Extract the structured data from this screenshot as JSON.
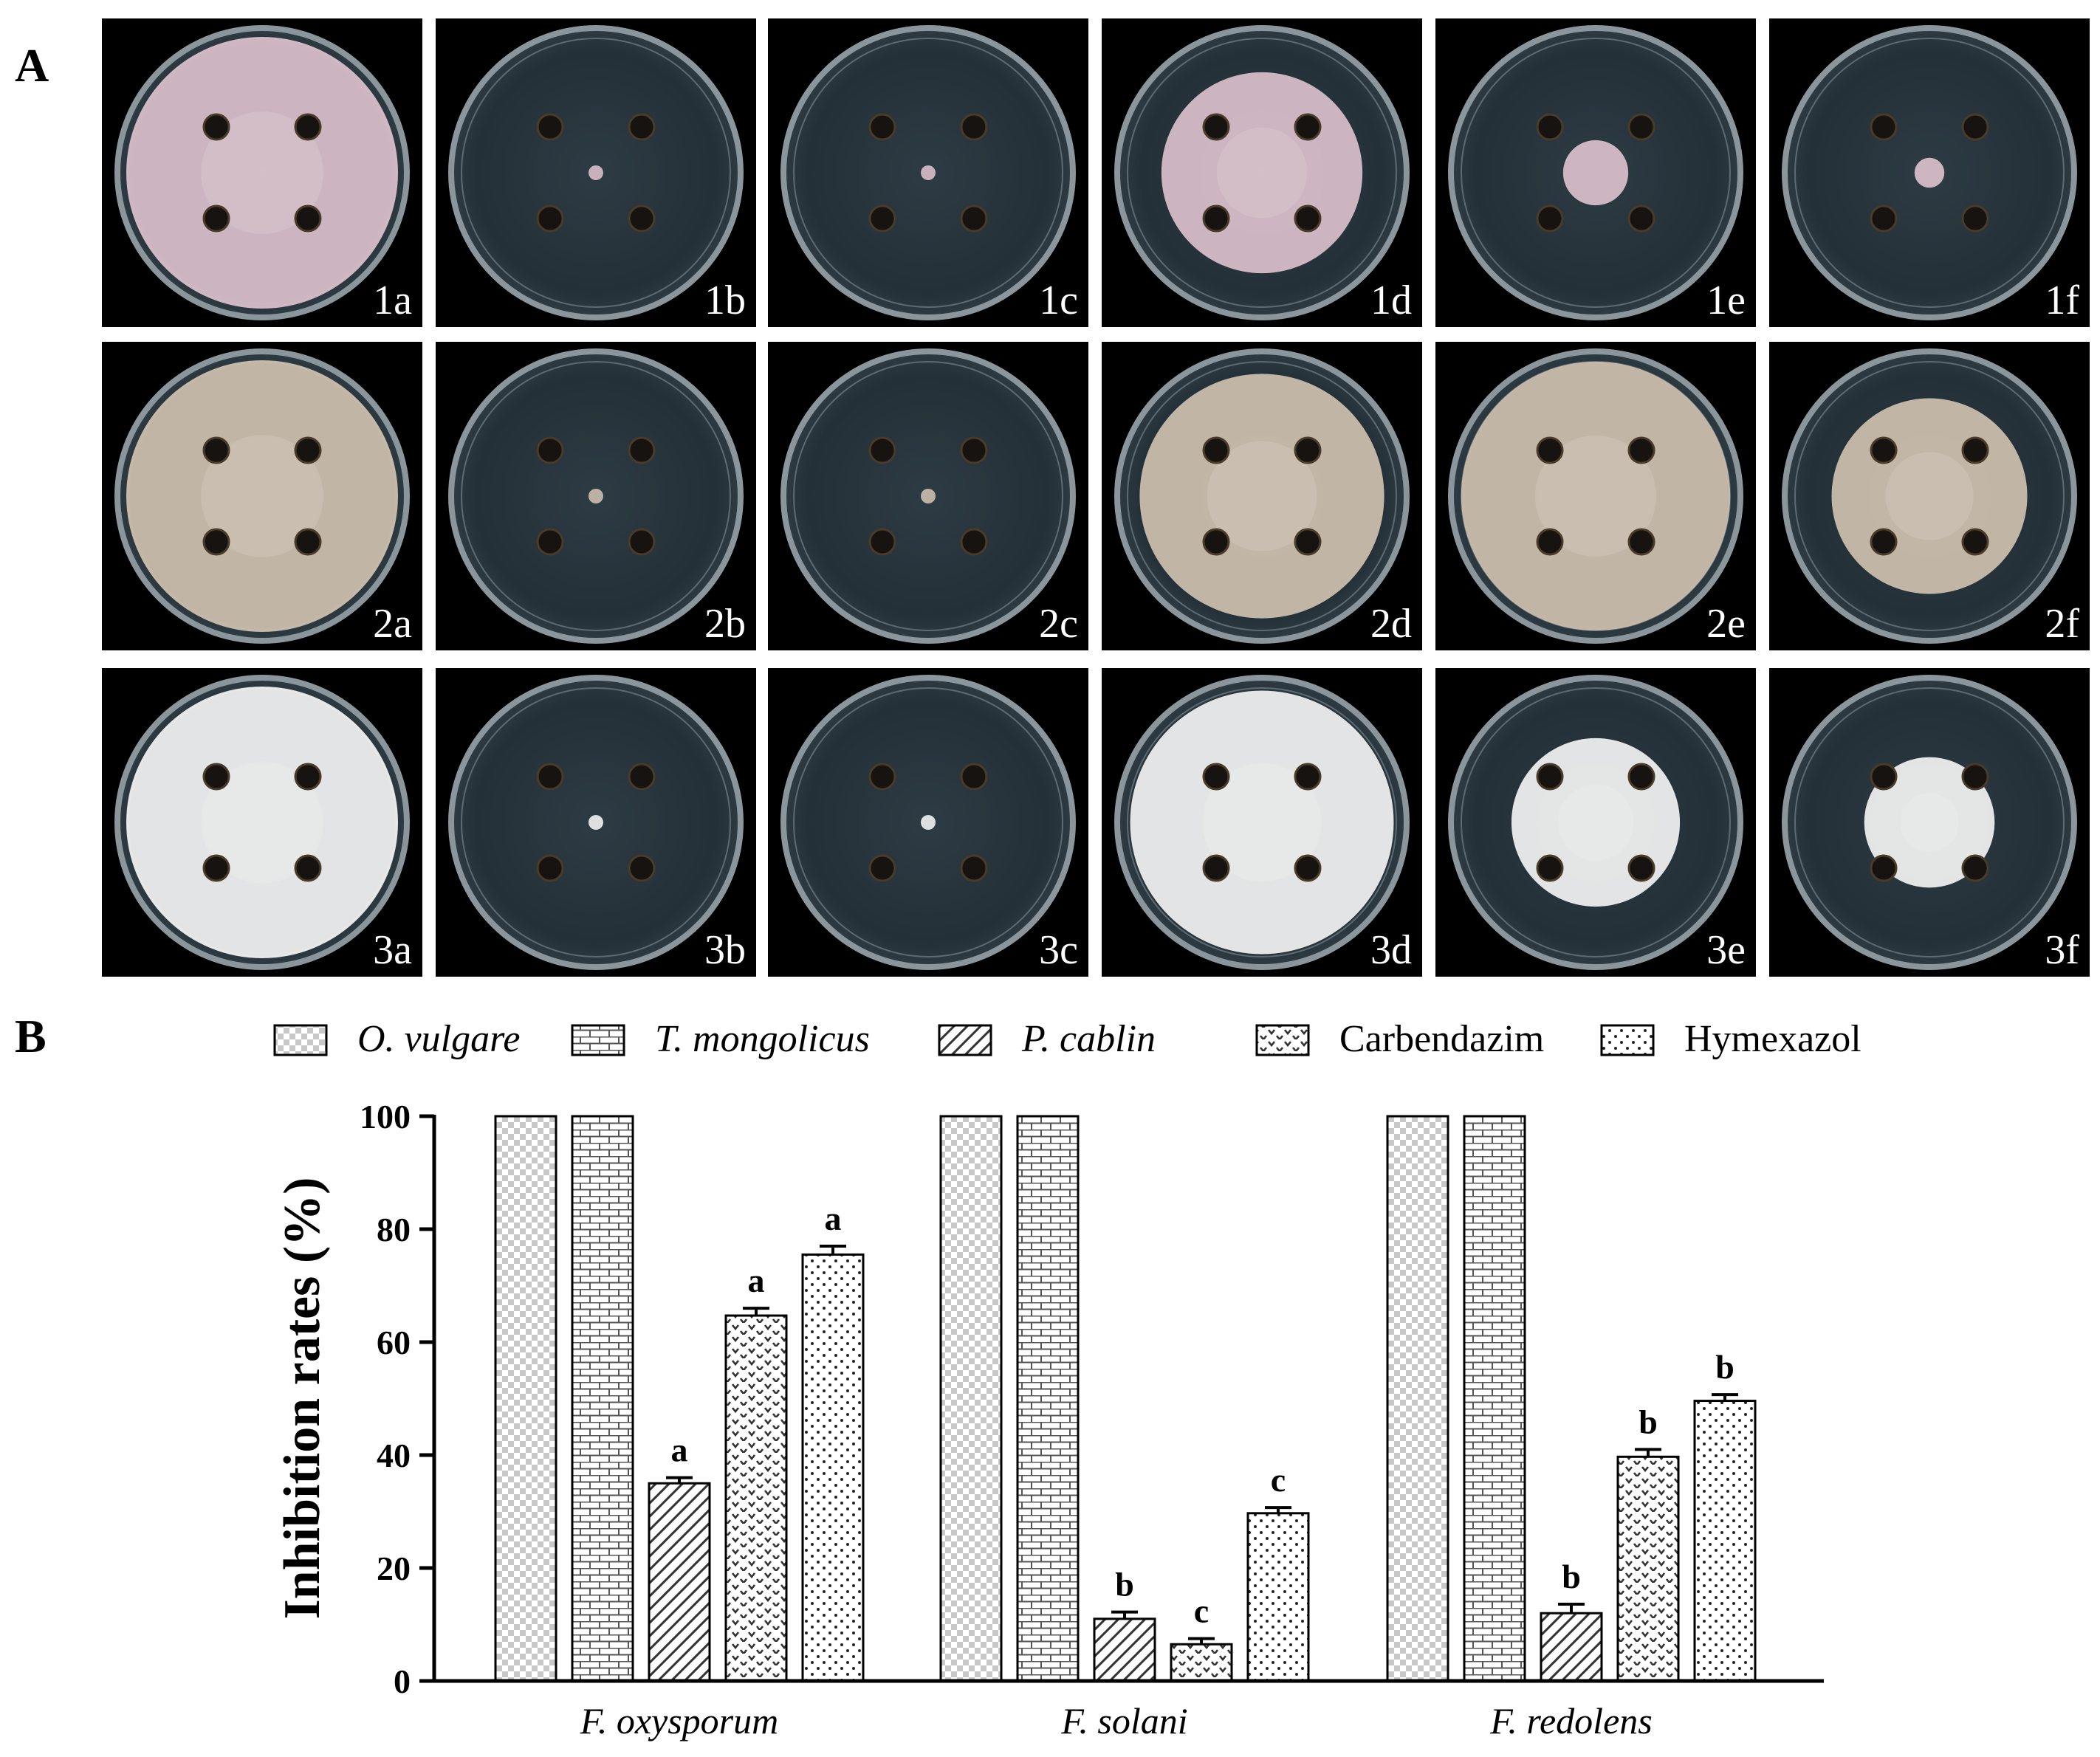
{
  "panel_a": {
    "letter": "A",
    "rows": [
      {
        "row": 1,
        "labels": [
          "1a",
          "1b",
          "1c",
          "1d",
          "1e",
          "1f"
        ]
      },
      {
        "row": 2,
        "labels": [
          "2a",
          "2b",
          "2c",
          "2d",
          "2e",
          "2f"
        ]
      },
      {
        "row": 3,
        "labels": [
          "3a",
          "3b",
          "3c",
          "3d",
          "3e",
          "3f"
        ]
      }
    ],
    "colony_colors": {
      "row1": "#d9bfcb",
      "row2": "#cdbfae",
      "row3": "#f2f2f2"
    },
    "colony_relative_size": [
      [
        1.0,
        0.0,
        0.0,
        0.74,
        0.24,
        0.11
      ],
      [
        1.0,
        0.0,
        0.0,
        0.9,
        0.99,
        0.72
      ],
      [
        1.0,
        0.0,
        0.0,
        0.97,
        0.62,
        0.48
      ]
    ]
  },
  "panel_b": {
    "letter": "B"
  },
  "chart_data": {
    "type": "bar",
    "title": "",
    "xlabel": "",
    "ylabel": "Inhibition rates (%)",
    "ylim": [
      0,
      100
    ],
    "yticks": [
      0,
      20,
      40,
      60,
      80,
      100
    ],
    "legend_position": "top",
    "categories": [
      "F. oxysporum",
      "F. solani",
      "F. redolens"
    ],
    "series": [
      {
        "name": "O. vulgare",
        "italic": true,
        "pattern": "checker",
        "values": [
          100,
          100,
          100
        ],
        "errors": [
          0,
          0,
          0
        ],
        "labels": [
          "",
          "",
          ""
        ]
      },
      {
        "name": "T. mongolicus",
        "italic": true,
        "pattern": "brick",
        "values": [
          100,
          100,
          100
        ],
        "errors": [
          0,
          0,
          0
        ],
        "labels": [
          "",
          "",
          ""
        ]
      },
      {
        "name": "P. cablin",
        "italic": true,
        "pattern": "diagonal",
        "values": [
          35,
          11,
          12
        ],
        "errors": [
          1,
          1.2,
          1.6
        ],
        "labels": [
          "a",
          "b",
          "b"
        ]
      },
      {
        "name": "Carbendazim",
        "italic": false,
        "pattern": "chevron",
        "values": [
          64.7,
          6.5,
          39.7
        ],
        "errors": [
          1.3,
          1,
          1.3
        ],
        "labels": [
          "a",
          "c",
          "b"
        ]
      },
      {
        "name": "Hymexazol",
        "italic": false,
        "pattern": "dots",
        "values": [
          75.5,
          29.7,
          49.6
        ],
        "errors": [
          1.5,
          1,
          1.1
        ],
        "labels": [
          "a",
          "c",
          "b"
        ]
      }
    ]
  }
}
